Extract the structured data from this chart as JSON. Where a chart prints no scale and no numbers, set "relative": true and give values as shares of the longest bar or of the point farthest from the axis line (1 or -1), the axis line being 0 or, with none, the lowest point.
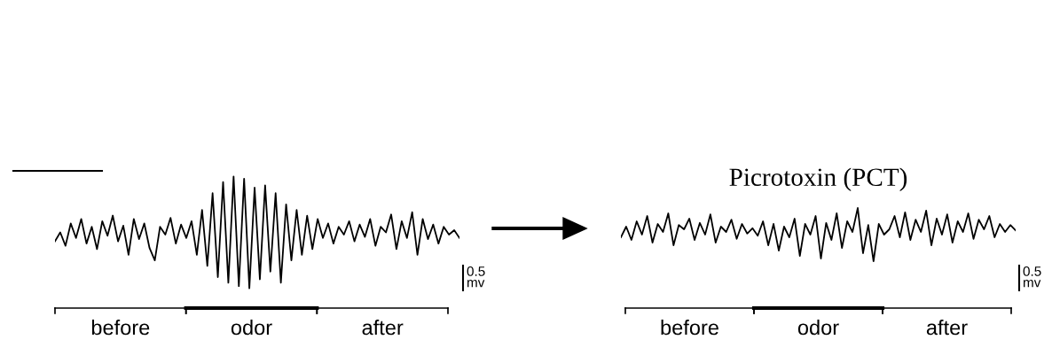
{
  "chart_data": [
    {
      "type": "line",
      "relative": true,
      "categories": [
        null,
        null,
        null,
        null,
        null,
        null,
        null,
        null,
        null,
        null,
        null,
        null,
        null,
        null,
        null,
        null,
        null,
        null,
        null,
        null,
        null,
        null,
        null,
        null,
        null,
        null,
        null,
        null,
        null,
        null,
        null,
        null,
        null,
        null,
        null,
        null,
        null,
        null,
        null,
        null,
        null,
        null,
        null,
        null,
        null,
        null,
        null,
        null,
        null,
        null,
        null,
        null,
        null,
        null,
        null,
        null,
        null,
        null,
        null,
        null,
        null,
        null,
        null,
        null,
        null,
        null,
        null,
        null,
        null,
        null,
        null,
        null,
        null,
        null,
        null,
        null,
        null,
        null
      ],
      "series": [
        {
          "color": "#000000",
          "values": [
            0.42,
            0.5,
            0.38,
            0.58,
            0.45,
            0.62,
            0.4,
            0.55,
            0.35,
            0.6,
            0.47,
            0.65,
            0.42,
            0.56,
            0.3,
            0.62,
            0.44,
            0.58,
            0.36,
            0.25,
            0.55,
            0.48,
            0.63,
            0.4,
            0.57,
            0.45,
            0.6,
            0.3,
            0.7,
            0.2,
            0.85,
            0.1,
            0.95,
            0.05,
            1.0,
            0.02,
            0.98,
            0.0,
            0.9,
            0.08,
            0.92,
            0.15,
            0.85,
            0.05,
            0.75,
            0.25,
            0.7,
            0.3,
            0.65,
            0.35,
            0.62,
            0.45,
            0.58,
            0.4,
            0.55,
            0.48,
            0.6,
            0.42,
            0.57,
            0.46,
            0.62,
            0.38,
            0.55,
            0.5,
            0.66,
            0.35,
            0.6,
            0.45,
            0.68,
            0.3,
            0.62,
            0.44,
            0.57,
            0.4,
            0.55,
            0.48,
            0.52,
            0.45
          ]
        }
      ],
      "annotations": [
        "before",
        "odor",
        "after",
        "0.5\nmv"
      ]
    },
    {
      "type": "line",
      "relative": true,
      "title": "Picrotoxin (PCT)",
      "categories": [
        null,
        null,
        null,
        null,
        null,
        null,
        null,
        null,
        null,
        null,
        null,
        null,
        null,
        null,
        null,
        null,
        null,
        null,
        null,
        null,
        null,
        null,
        null,
        null,
        null,
        null,
        null,
        null,
        null,
        null,
        null,
        null,
        null,
        null,
        null,
        null,
        null,
        null,
        null,
        null,
        null,
        null,
        null,
        null,
        null,
        null,
        null,
        null,
        null,
        null,
        null,
        null,
        null,
        null,
        null,
        null,
        null,
        null,
        null,
        null,
        null,
        null,
        null,
        null,
        null,
        null,
        null,
        null,
        null,
        null,
        null,
        null,
        null,
        null,
        null,
        null
      ],
      "series": [
        {
          "color": "#000000",
          "values": [
            0.45,
            0.65,
            0.4,
            0.75,
            0.5,
            0.85,
            0.35,
            0.7,
            0.55,
            0.9,
            0.3,
            0.68,
            0.6,
            0.8,
            0.4,
            0.72,
            0.5,
            0.88,
            0.35,
            0.65,
            0.55,
            0.78,
            0.42,
            0.7,
            0.52,
            0.62,
            0.48,
            0.75,
            0.3,
            0.7,
            0.2,
            0.65,
            0.45,
            0.8,
            0.1,
            0.7,
            0.5,
            0.85,
            0.05,
            0.72,
            0.4,
            0.9,
            0.25,
            0.75,
            0.55,
            1.0,
            0.15,
            0.68,
            0.0,
            0.7,
            0.5,
            0.6,
            0.85,
            0.45,
            0.92,
            0.4,
            0.78,
            0.55,
            0.95,
            0.3,
            0.8,
            0.5,
            0.88,
            0.35,
            0.75,
            0.55,
            0.9,
            0.42,
            0.78,
            0.6,
            0.85,
            0.45,
            0.7,
            0.55,
            0.68,
            0.58
          ]
        }
      ],
      "annotations": [
        "before",
        "odor",
        "after",
        "0.5\nmv"
      ]
    }
  ]
}
